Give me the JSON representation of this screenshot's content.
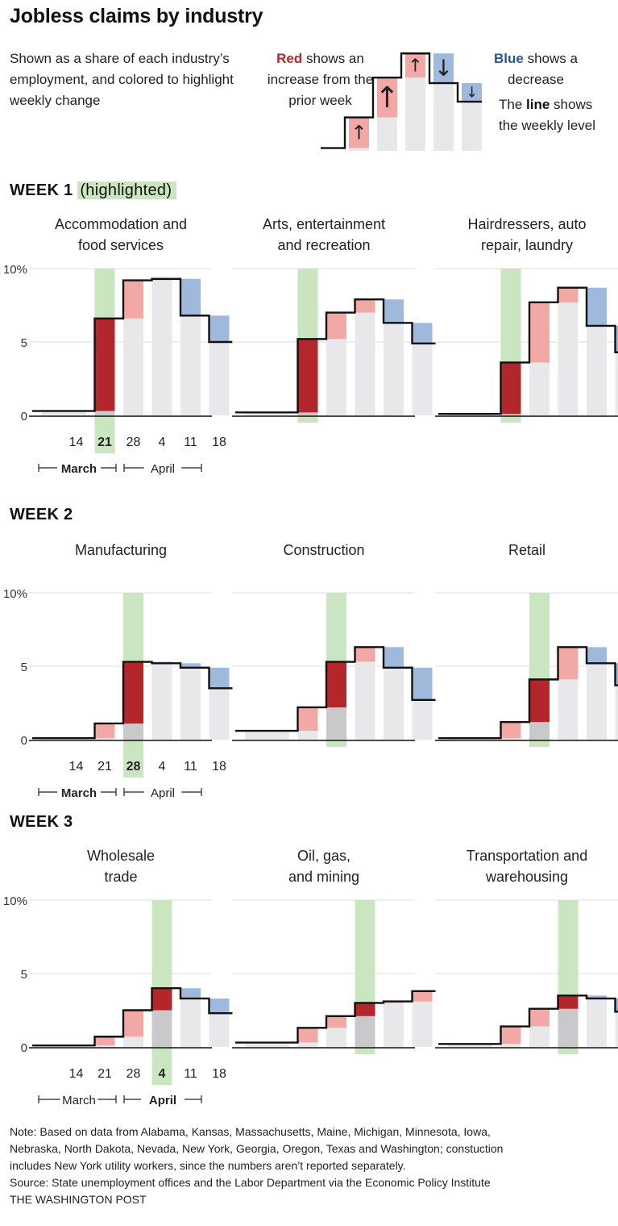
{
  "title": "Jobless claims by industry",
  "subtitle": "Shown as a share of each industry’s employment, and colored to highlight weekly change",
  "legend": {
    "red_word": "Red",
    "red_text": " shows an increase from the prior week",
    "blue_word": "Blue",
    "blue_text": " shows a decrease",
    "line_prefix": "The ",
    "line_word": "line",
    "line_text": " shows the weekly level",
    "up_arrow": "↑",
    "down_arrow": "↓"
  },
  "colors": {
    "increase": "#f2a9a5",
    "increase_highlight": "#b3262c",
    "decrease": "#9fb9dc",
    "base": "#e8e8eb",
    "base_highlight": "#c9c9cc",
    "highlight_band": "#c9e6c0",
    "line": "#111111"
  },
  "y_ticks": [
    "10%",
    "5",
    "0"
  ],
  "x_ticks": [
    "14",
    "21",
    "28",
    "4",
    "11",
    "18"
  ],
  "months": [
    "March",
    "April"
  ],
  "weeks": [
    {
      "label": "WEEK 1",
      "highlight_label": "(highlighted)",
      "highlight_index": 1,
      "bold_month": 0
    },
    {
      "label": "WEEK 2",
      "highlight_label": "",
      "highlight_index": 2,
      "bold_month": 0
    },
    {
      "label": "WEEK 3",
      "highlight_label": "",
      "highlight_index": 3,
      "bold_month": 1
    }
  ],
  "panel_titles": [
    [
      "Accommodation and",
      "food services"
    ],
    [
      "Arts, entertainment",
      "and recreation"
    ],
    [
      "Hairdressers, auto",
      "repair, laundry"
    ],
    [
      "Manufacturing"
    ],
    [
      "Construction"
    ],
    [
      "Retail"
    ],
    [
      "Wholesale",
      "trade"
    ],
    [
      "Oil, gas,",
      "and mining"
    ],
    [
      "Transportation and",
      "warehousing"
    ]
  ],
  "chart_data": [
    {
      "type": "bar",
      "title": "Accommodation and food services",
      "categories": [
        "14",
        "21",
        "28",
        "4",
        "11",
        "18"
      ],
      "values": [
        0.3,
        6.6,
        9.2,
        9.3,
        6.8,
        5.0
      ],
      "ylim": [
        0,
        10
      ],
      "highlight": "21"
    },
    {
      "type": "bar",
      "title": "Arts, entertainment and recreation",
      "categories": [
        "14",
        "21",
        "28",
        "4",
        "11",
        "18"
      ],
      "values": [
        0.2,
        5.2,
        7.0,
        7.9,
        6.3,
        4.9
      ],
      "ylim": [
        0,
        10
      ],
      "highlight": "21"
    },
    {
      "type": "bar",
      "title": "Hairdressers, auto repair, laundry",
      "categories": [
        "14",
        "21",
        "28",
        "4",
        "11",
        "18"
      ],
      "values": [
        0.1,
        3.6,
        7.7,
        8.7,
        6.1,
        4.3
      ],
      "ylim": [
        0,
        10
      ],
      "highlight": "21"
    },
    {
      "type": "bar",
      "title": "Manufacturing",
      "categories": [
        "14",
        "21",
        "28",
        "4",
        "11",
        "18"
      ],
      "values": [
        0.1,
        1.1,
        5.3,
        5.2,
        4.9,
        3.5
      ],
      "ylim": [
        0,
        10
      ],
      "highlight": "28"
    },
    {
      "type": "bar",
      "title": "Construction",
      "categories": [
        "14",
        "21",
        "28",
        "4",
        "11",
        "18"
      ],
      "values": [
        0.6,
        2.2,
        5.3,
        6.3,
        4.9,
        2.7
      ],
      "ylim": [
        0,
        10
      ],
      "highlight": "28"
    },
    {
      "type": "bar",
      "title": "Retail",
      "categories": [
        "14",
        "21",
        "28",
        "4",
        "11",
        "18"
      ],
      "values": [
        0.1,
        1.2,
        4.1,
        6.3,
        5.2,
        3.7
      ],
      "ylim": [
        0,
        10
      ],
      "highlight": "28"
    },
    {
      "type": "bar",
      "title": "Wholesale trade",
      "categories": [
        "14",
        "21",
        "28",
        "4",
        "11",
        "18"
      ],
      "values": [
        0.1,
        0.7,
        2.5,
        4.0,
        3.3,
        2.3
      ],
      "ylim": [
        0,
        10
      ],
      "highlight": "4"
    },
    {
      "type": "bar",
      "title": "Oil, gas, and mining",
      "categories": [
        "14",
        "21",
        "28",
        "4",
        "11",
        "18"
      ],
      "values": [
        0.3,
        1.3,
        2.1,
        3.0,
        3.1,
        3.8
      ],
      "ylim": [
        0,
        10
      ],
      "highlight": "4"
    },
    {
      "type": "bar",
      "title": "Transportation and warehousing",
      "categories": [
        "14",
        "21",
        "28",
        "4",
        "11",
        "18"
      ],
      "values": [
        0.2,
        1.4,
        2.6,
        3.5,
        3.3,
        2.4
      ],
      "ylim": [
        0,
        10
      ],
      "highlight": "4"
    }
  ],
  "note_lines": [
    "Note: Based on data from Alabama, Kansas, Massachusetts, Maine, Michigan, Minnesota, Iowa,",
    "Nebraska, North Dakota, Nevada, New York, Georgia, Oregon, Texas and Washington; constuction",
    "includes New York utility workers, since the numbers aren’t reported separately."
  ],
  "source": "Source: State unemployment offices and the Labor Department via the Economic Policy Institute",
  "credit": "THE WASHINGTON POST"
}
